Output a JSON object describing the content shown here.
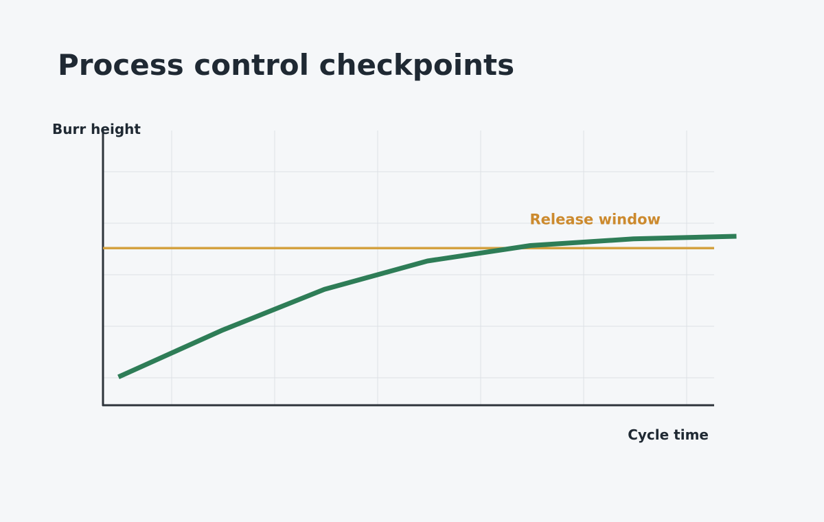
{
  "title": "Process control checkpoints",
  "chart_data": {
    "type": "line",
    "title": "Process control checkpoints",
    "xlabel": "Cycle time",
    "ylabel": "Burr height",
    "x": [
      0,
      1,
      2,
      3,
      4,
      5,
      6
    ],
    "series": [
      {
        "values": [
          0.4,
          1.3,
          2.1,
          2.65,
          2.95,
          3.08,
          3.13
        ]
      }
    ],
    "reference_line": {
      "label": "Release window",
      "value": 2.9
    },
    "xlim": [
      -0.15,
      5.8
    ],
    "ylim": [
      -0.15,
      3.6
    ],
    "grid": true,
    "colors": {
      "series": "#2e7d57",
      "reference": "#d4a140",
      "reference_label": "#cc8a2e"
    }
  }
}
